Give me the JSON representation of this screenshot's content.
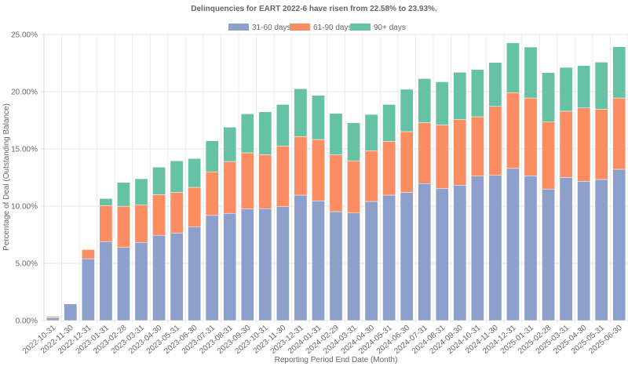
{
  "chart_data": {
    "type": "bar",
    "stacked": true,
    "title": "Delinquencies for EART 2022-6 have risen from 22.58% to 23.93%.",
    "xlabel": "Reporting Period End Date (Month)",
    "ylabel": "Percentage of Deal (Outstanding Balance)",
    "ylim": [
      0,
      25
    ],
    "yticks": [
      0,
      5,
      10,
      15,
      20,
      25
    ],
    "ytick_labels": [
      "0.00%",
      "5.00%",
      "10.00%",
      "15.00%",
      "20.00%",
      "25.00%"
    ],
    "grid": true,
    "legend_position": "top-center",
    "categories": [
      "2022-10-31",
      "2022-11-30",
      "2022-12-31",
      "2023-01-31",
      "2023-02-28",
      "2023-03-31",
      "2023-04-30",
      "2023-05-31",
      "2023-06-30",
      "2023-07-31",
      "2023-08-31",
      "2023-09-30",
      "2023-10-31",
      "2023-11-30",
      "2023-12-31",
      "2024-01-31",
      "2024-02-29",
      "2024-03-31",
      "2024-04-30",
      "2024-05-31",
      "2024-06-30",
      "2024-07-31",
      "2024-08-31",
      "2024-09-30",
      "2024-10-31",
      "2024-11-30",
      "2024-12-31",
      "2025-01-31",
      "2025-02-28",
      "2025-03-31",
      "2025-04-30",
      "2025-05-31",
      "2025-06-30"
    ],
    "series": [
      {
        "name": "31-60 days",
        "color": "#8da0cb",
        "values": [
          0.25,
          1.45,
          5.4,
          6.9,
          6.39,
          6.83,
          7.45,
          7.65,
          8.2,
          9.19,
          9.37,
          9.75,
          9.78,
          9.95,
          10.96,
          10.46,
          9.52,
          9.4,
          10.41,
          10.96,
          11.2,
          11.97,
          11.53,
          11.83,
          12.62,
          12.69,
          13.3,
          12.65,
          11.49,
          12.51,
          12.17,
          12.33,
          13.22
        ]
      },
      {
        "name": "61-90 days",
        "color": "#fc8d62",
        "values": [
          0.1,
          0.0,
          0.8,
          3.15,
          3.6,
          3.26,
          3.55,
          3.55,
          3.44,
          3.81,
          4.53,
          4.91,
          4.72,
          5.3,
          5.11,
          5.36,
          4.96,
          4.56,
          4.43,
          4.7,
          5.31,
          5.33,
          5.57,
          5.75,
          5.19,
          6.03,
          6.61,
          6.8,
          5.89,
          5.78,
          6.41,
          6.14,
          6.23
        ]
      },
      {
        "name": "90+ days",
        "color": "#66c2a5",
        "values": [
          0.05,
          0.0,
          0.0,
          0.61,
          2.08,
          2.3,
          2.4,
          2.76,
          2.52,
          2.71,
          3.0,
          3.4,
          3.74,
          3.63,
          4.18,
          3.86,
          3.62,
          3.32,
          3.17,
          3.22,
          3.7,
          3.84,
          3.76,
          4.11,
          4.13,
          3.83,
          4.36,
          4.45,
          4.29,
          3.83,
          3.7,
          4.11,
          4.48
        ]
      }
    ]
  }
}
